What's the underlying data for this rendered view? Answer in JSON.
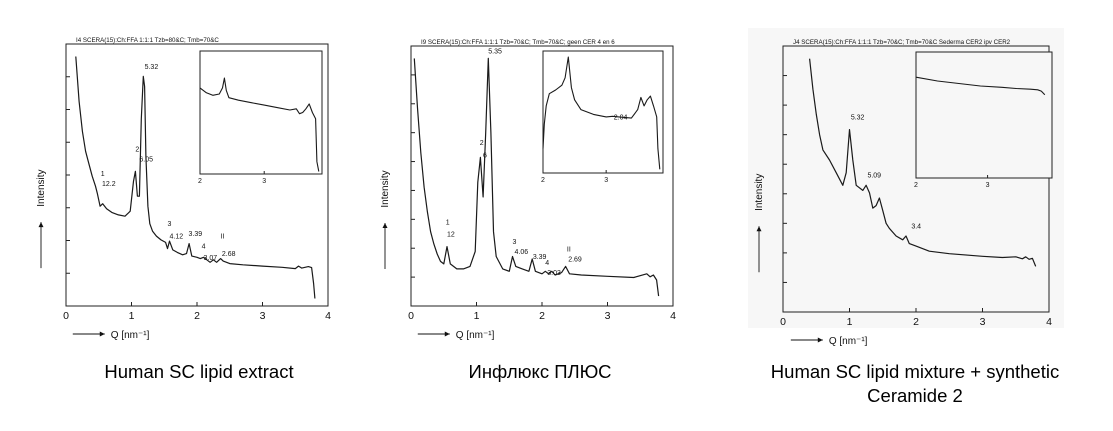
{
  "captions": [
    "Human SC lipid extract",
    "Инфлюкс ПЛЮС",
    "Human SC lipid mixture + synthetic Ceramide 2"
  ],
  "chart_data": [
    {
      "type": "line",
      "title": "I4 SCERA(15):Ch:FFA 1:1:1 Tzb=80&C; Tmb=70&C",
      "xlabel": "Q [nm⁻¹]",
      "ylabel": "Intensity",
      "xlim": [
        0,
        4
      ],
      "xticks": [
        "0",
        "1",
        "2",
        "3",
        "4"
      ],
      "series": [
        {
          "x": [
            0.15,
            0.2,
            0.25,
            0.3,
            0.35,
            0.4,
            0.45,
            0.48,
            0.52,
            0.56,
            0.62,
            0.7,
            0.8,
            0.9,
            0.98,
            1.03,
            1.06,
            1.09,
            1.12,
            1.15,
            1.18,
            1.2,
            1.22,
            1.25,
            1.28,
            1.32,
            1.38,
            1.45,
            1.52,
            1.55,
            1.58,
            1.63,
            1.7,
            1.78,
            1.84,
            1.88,
            1.92,
            2.0,
            2.05,
            2.1,
            2.15,
            2.2,
            2.25,
            2.3,
            2.36,
            2.4,
            2.5,
            2.7,
            3.0,
            3.3,
            3.5,
            3.55,
            3.6,
            3.7,
            3.75,
            3.78,
            3.8
          ],
          "y": [
            100,
            82,
            70,
            62,
            57,
            52,
            48,
            45,
            40,
            41,
            39,
            37.5,
            36.5,
            36,
            38,
            50,
            54,
            44,
            44,
            75,
            92,
            88,
            60,
            40,
            33,
            30,
            28,
            26.5,
            25.5,
            23,
            26,
            22.5,
            21.5,
            20.5,
            21,
            25,
            20,
            19.5,
            19,
            19.5,
            18.5,
            17.5,
            18.5,
            17.5,
            19,
            18,
            17,
            16.5,
            16,
            15.5,
            15,
            16,
            15.2,
            15.8,
            15.4,
            9,
            3
          ]
        }
      ],
      "annotations": [
        {
          "text": "1",
          "x": 0.53,
          "y": 52
        },
        {
          "text": "12.2",
          "x": 0.55,
          "y": 48
        },
        {
          "text": "2",
          "x": 1.06,
          "y": 62
        },
        {
          "text": "6.05",
          "x": 1.12,
          "y": 58
        },
        {
          "text": "5.32",
          "x": 1.2,
          "y": 95
        },
        {
          "text": "3",
          "x": 1.55,
          "y": 32
        },
        {
          "text": "4.12",
          "x": 1.58,
          "y": 27
        },
        {
          "text": "3.39",
          "x": 1.87,
          "y": 28
        },
        {
          "text": "4",
          "x": 2.07,
          "y": 23
        },
        {
          "text": "3.07",
          "x": 2.1,
          "y": 18.5
        },
        {
          "text": "II",
          "x": 2.36,
          "y": 27
        },
        {
          "text": "2.68",
          "x": 2.38,
          "y": 20
        }
      ],
      "inset": {
        "xlim": [
          2,
          3.9
        ],
        "xticks": [
          "2",
          "3"
        ],
        "x": [
          2.0,
          2.1,
          2.2,
          2.3,
          2.35,
          2.38,
          2.41,
          2.45,
          2.6,
          2.8,
          3.0,
          3.2,
          3.4,
          3.5,
          3.55,
          3.6,
          3.65,
          3.7,
          3.75,
          3.8,
          3.82,
          3.85
        ],
        "y": [
          70,
          66,
          64,
          65,
          70,
          78,
          68,
          62,
          60,
          58,
          56,
          54,
          52,
          53,
          49,
          50,
          53,
          57,
          50,
          45,
          10,
          2
        ]
      }
    },
    {
      "type": "line",
      "title": "I9 SCERA(15):Ch:FFA 1:1:1 Tzb=70&C; Tmb=70&C; geen CER 4 en 6",
      "xlabel": "Q [nm⁻¹]",
      "ylabel": "Intensity",
      "xlim": [
        0,
        4
      ],
      "xticks": [
        "0",
        "1",
        "2",
        "3",
        "4"
      ],
      "series": [
        {
          "x": [
            0.05,
            0.1,
            0.15,
            0.2,
            0.25,
            0.3,
            0.35,
            0.4,
            0.45,
            0.5,
            0.55,
            0.6,
            0.7,
            0.8,
            0.9,
            0.98,
            1.02,
            1.06,
            1.1,
            1.14,
            1.18,
            1.22,
            1.26,
            1.3,
            1.4,
            1.5,
            1.55,
            1.6,
            1.7,
            1.8,
            1.85,
            1.9,
            2.0,
            2.05,
            2.1,
            2.15,
            2.2,
            2.3,
            2.36,
            2.42,
            2.6,
            3.0,
            3.4,
            3.6,
            3.65,
            3.7,
            3.75,
            3.78
          ],
          "y": [
            100,
            80,
            62,
            48,
            38,
            30,
            25,
            21,
            18,
            17,
            24,
            17,
            15,
            15,
            16,
            22,
            50,
            60,
            44,
            70,
            100,
            70,
            30,
            20,
            15,
            14,
            20,
            16,
            15,
            14,
            19,
            14,
            13,
            14,
            13,
            14,
            12.5,
            13.5,
            16,
            13,
            12.5,
            12,
            11.5,
            13,
            11.8,
            12.5,
            10.5,
            4
          ]
        }
      ],
      "annotations": [
        {
          "text": "1",
          "x": 0.53,
          "y": 33
        },
        {
          "text": "12",
          "x": 0.55,
          "y": 28
        },
        {
          "text": "2",
          "x": 1.05,
          "y": 65
        },
        {
          "text": "6",
          "x": 1.1,
          "y": 60
        },
        {
          "text": "5.35",
          "x": 1.18,
          "y": 102
        },
        {
          "text": "3",
          "x": 1.55,
          "y": 25
        },
        {
          "text": "4.06",
          "x": 1.58,
          "y": 21
        },
        {
          "text": "3.39",
          "x": 1.86,
          "y": 19
        },
        {
          "text": "4",
          "x": 2.05,
          "y": 16.5
        },
        {
          "text": "3.03",
          "x": 2.08,
          "y": 12.5
        },
        {
          "text": "II",
          "x": 2.38,
          "y": 22
        },
        {
          "text": "2.69",
          "x": 2.4,
          "y": 18
        }
      ],
      "inset": {
        "xlim": [
          2,
          3.9
        ],
        "xticks": [
          "2",
          "3"
        ],
        "x": [
          2.0,
          2.02,
          2.05,
          2.1,
          2.2,
          2.3,
          2.35,
          2.4,
          2.45,
          2.5,
          2.6,
          2.8,
          3.0,
          3.1,
          3.2,
          3.4,
          3.5,
          3.55,
          3.6,
          3.65,
          3.7,
          3.75,
          3.8,
          3.82,
          3.85
        ],
        "y": [
          20,
          40,
          55,
          65,
          68,
          72,
          78,
          95,
          70,
          60,
          52,
          48,
          46,
          46.5,
          46,
          45,
          52,
          62,
          55,
          60,
          63,
          55,
          46,
          20,
          3
        ]
      },
      "inset_annotations": [
        {
          "text": "2.04",
          "x": 3.12,
          "y": 44
        }
      ]
    },
    {
      "type": "line",
      "title": "J4 SCERA(15):Ch:FFA 1:1:1 Tzb=70&C; Tmb=70&C Sederma CER2 ipv CER2",
      "xlabel": "Q [nm⁻¹]",
      "ylabel": "Intensity",
      "xlim": [
        0,
        4
      ],
      "xticks": [
        "0",
        "1",
        "2",
        "3",
        "4"
      ],
      "series": [
        {
          "x": [
            0.4,
            0.45,
            0.5,
            0.55,
            0.6,
            0.7,
            0.8,
            0.9,
            0.95,
            1.0,
            1.05,
            1.1,
            1.2,
            1.25,
            1.3,
            1.35,
            1.4,
            1.45,
            1.5,
            1.55,
            1.6,
            1.7,
            1.8,
            1.85,
            1.9,
            2.0,
            2.2,
            2.5,
            3.0,
            3.3,
            3.5,
            3.6,
            3.65,
            3.7,
            3.75,
            3.8
          ],
          "y": [
            100,
            88,
            78,
            70,
            64,
            60,
            55,
            50,
            55,
            72,
            60,
            50,
            48,
            50,
            47,
            41,
            42,
            45,
            40,
            35,
            33,
            30,
            28.5,
            30,
            27,
            26,
            24,
            23,
            22,
            21.5,
            21.8,
            21,
            21.8,
            20.8,
            21.2,
            18
          ]
        }
      ],
      "annotations": [
        {
          "text": "5.32",
          "x": 1.02,
          "y": 76
        },
        {
          "text": "5.09",
          "x": 1.27,
          "y": 53
        },
        {
          "text": "3.4",
          "x": 1.93,
          "y": 33
        }
      ],
      "inset": {
        "xlim": [
          2,
          3.9
        ],
        "xticks": [
          "2",
          "3"
        ],
        "x": [
          2.0,
          2.3,
          2.6,
          2.9,
          3.2,
          3.4,
          3.6,
          3.7,
          3.75,
          3.8
        ],
        "y": [
          80,
          77,
          75,
          73,
          72,
          71,
          70.5,
          70,
          69,
          66
        ]
      }
    }
  ]
}
